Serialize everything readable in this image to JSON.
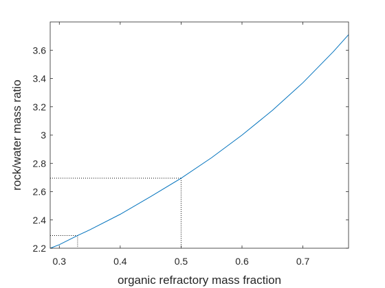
{
  "chart_data": {
    "type": "line",
    "title": "",
    "xlabel": "organic refractory mass fraction",
    "ylabel": "rock/water mass ratio",
    "xlim": [
      0.285,
      0.775
    ],
    "ylim": [
      2.2,
      3.8
    ],
    "xticks": [
      0.3,
      0.4,
      0.5,
      0.6,
      0.7
    ],
    "xtick_labels": [
      "0.3",
      "0.4",
      "0.5",
      "0.6",
      "0.7"
    ],
    "yticks": [
      2.2,
      2.4,
      2.6,
      2.8,
      3.0,
      3.2,
      3.4,
      3.6
    ],
    "ytick_labels": [
      "2.2",
      "2.4",
      "2.6",
      "2.8",
      "3",
      "3.2",
      "3.4",
      "3.6"
    ],
    "grid": false,
    "line_color": "#0072bd",
    "guide_color": "#000000",
    "series": [
      {
        "x": [
          0.285,
          0.3,
          0.33,
          0.35,
          0.4,
          0.45,
          0.5,
          0.55,
          0.6,
          0.65,
          0.7,
          0.75,
          0.775
        ],
        "y": [
          2.2,
          2.225,
          2.29,
          2.33,
          2.44,
          2.565,
          2.695,
          2.84,
          3.0,
          3.175,
          3.37,
          3.59,
          3.71
        ]
      }
    ],
    "guides": [
      {
        "x": 0.33,
        "y": 2.29
      },
      {
        "x": 0.5,
        "y": 2.695
      }
    ]
  }
}
